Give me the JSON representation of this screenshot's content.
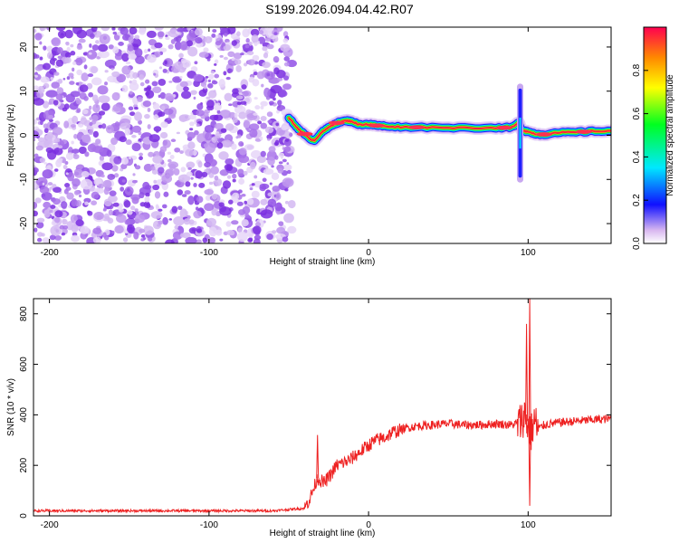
{
  "title": "S199.2026.094.04.42.R07",
  "chart_data": [
    {
      "type": "heatmap",
      "xlabel": "Height of straight line (km)",
      "ylabel": "Frequency (Hz)",
      "xlim": [
        -210,
        152
      ],
      "ylim": [
        -24.5,
        24.5
      ],
      "xticks": [
        -200,
        -100,
        0,
        100
      ],
      "yticks": [
        -20,
        -10,
        0,
        10,
        20
      ],
      "noise_region": [
        -210,
        -48
      ],
      "ridge": {
        "x": [
          -50,
          -46,
          -42,
          -38,
          -34,
          -30,
          -26,
          -22,
          -18,
          -14,
          -10,
          -6,
          -2,
          2,
          6,
          10,
          20,
          40,
          60,
          80,
          90,
          94,
          96,
          100,
          105,
          110,
          120,
          130,
          140,
          152
        ],
        "y": [
          4.0,
          2.2,
          0.8,
          -0.5,
          -1.2,
          0.5,
          1.5,
          2.5,
          3.0,
          3.3,
          3.1,
          2.4,
          2.5,
          2.4,
          2.2,
          2.1,
          1.9,
          1.8,
          1.7,
          1.7,
          1.8,
          2.8,
          1.2,
          0.8,
          0.3,
          0.2,
          0.6,
          0.7,
          0.9,
          1.0
        ]
      },
      "spike": {
        "x": 95,
        "y_range": [
          -10,
          11
        ]
      },
      "colorbar": {
        "label": "Normalized spectral amplitude",
        "range": [
          0,
          1
        ],
        "ticks": [
          "0.0",
          "0.2",
          "0.4",
          "0.6",
          "0.8"
        ],
        "tick_values": [
          0.0,
          0.2,
          0.4,
          0.6,
          0.8
        ]
      }
    },
    {
      "type": "line",
      "xlabel": "Height of straight line (km)",
      "ylabel": "SNR (10 * v/v)",
      "xlim": [
        -210,
        152
      ],
      "ylim": [
        0,
        860
      ],
      "xticks": [
        -200,
        -100,
        0,
        100
      ],
      "yticks": [
        0,
        200,
        400,
        600,
        800
      ],
      "color": "#ee2020",
      "series": [
        {
          "name": "SNR",
          "x": [
            -210,
            -200,
            -150,
            -100,
            -60,
            -40,
            -36,
            -32,
            -28,
            -24,
            -20,
            -16,
            -12,
            -8,
            -4,
            0,
            5,
            10,
            15,
            20,
            25,
            30,
            40,
            50,
            60,
            70,
            80,
            90,
            95,
            98,
            100,
            102,
            104,
            106,
            110,
            120,
            130,
            140,
            152
          ],
          "values": [
            20,
            20,
            20,
            20,
            20,
            30,
            80,
            150,
            130,
            160,
            200,
            210,
            220,
            240,
            260,
            280,
            300,
            310,
            330,
            340,
            350,
            355,
            360,
            365,
            360,
            360,
            365,
            360,
            370,
            400,
            350,
            330,
            380,
            340,
            360,
            370,
            375,
            380,
            385
          ]
        }
      ],
      "annotations": [
        {
          "x": -32,
          "value": 320
        },
        {
          "x": 99,
          "value": 760
        },
        {
          "x": 101,
          "value": 860
        },
        {
          "x": 101,
          "value": 40
        }
      ]
    }
  ]
}
